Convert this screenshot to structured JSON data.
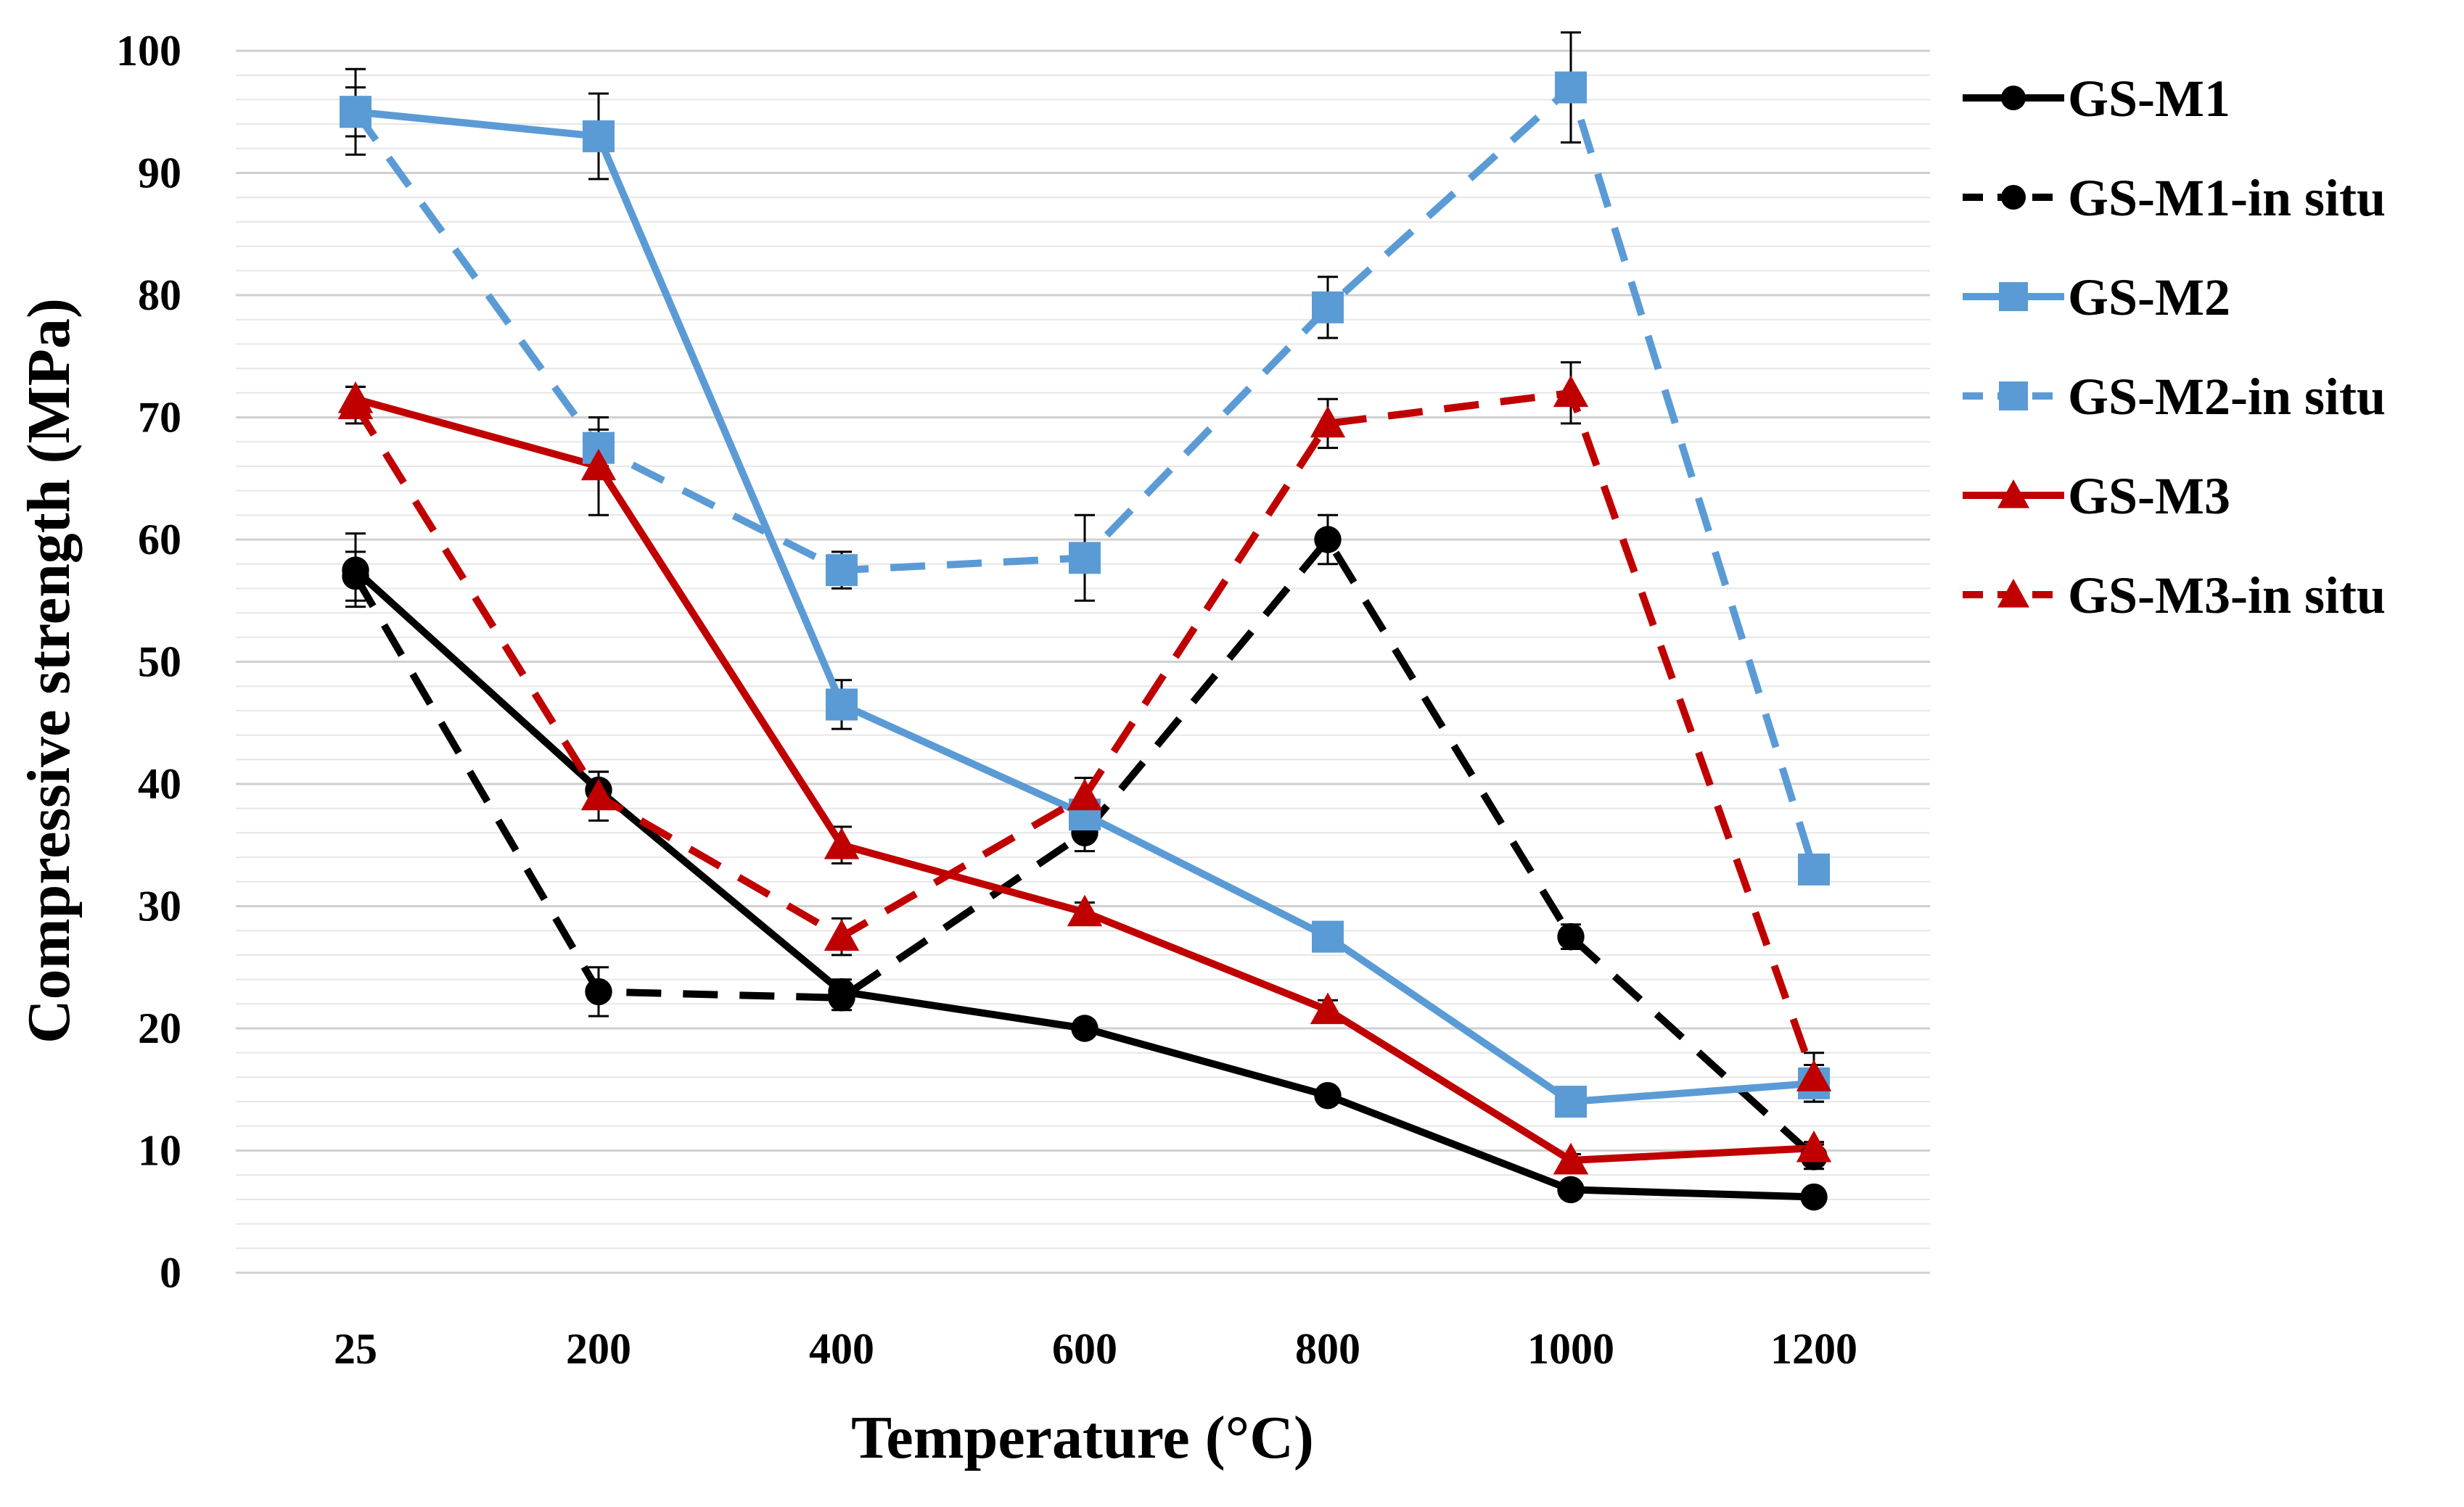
{
  "chart_data": {
    "type": "line",
    "title": "",
    "xlabel": "Temperature (°C)",
    "ylabel": "Compressive strength (MPa)",
    "categories": [
      "25",
      "200",
      "400",
      "600",
      "800",
      "1000",
      "1200"
    ],
    "ylim": [
      0,
      100
    ],
    "yticks": [
      "0",
      "10",
      "20",
      "30",
      "40",
      "50",
      "60",
      "70",
      "80",
      "90",
      "100"
    ],
    "grid": true,
    "legend_position": "right",
    "series": [
      {
        "name": "GS-M1",
        "color": "#000000",
        "dashed": false,
        "marker": "circle",
        "values": [
          57.5,
          39.5,
          23.0,
          20.0,
          14.5,
          6.8,
          6.2
        ],
        "errors": [
          3.0,
          1.5,
          1.0,
          0.6,
          0.6,
          0.4,
          0.4
        ]
      },
      {
        "name": "GS-M1-in situ",
        "color": "#000000",
        "dashed": true,
        "marker": "circle",
        "values": [
          57.0,
          23.0,
          22.5,
          36.0,
          60.0,
          27.5,
          9.5
        ],
        "errors": [
          2.0,
          2.0,
          1.0,
          1.5,
          2.0,
          1.0,
          1.0
        ]
      },
      {
        "name": "GS-M2",
        "color": "#5b9bd5",
        "dashed": false,
        "marker": "square",
        "values": [
          95.0,
          93.0,
          46.5,
          37.5,
          27.5,
          14.0,
          15.5
        ],
        "errors": [
          3.5,
          3.5,
          2.0,
          1.0,
          1.0,
          1.0,
          1.5
        ]
      },
      {
        "name": "GS-M2-in situ",
        "color": "#5b9bd5",
        "dashed": true,
        "marker": "square",
        "values": [
          95.0,
          67.5,
          57.5,
          58.5,
          79.0,
          97.0,
          33.0
        ],
        "errors": [
          2.0,
          1.5,
          1.5,
          3.5,
          2.5,
          4.5,
          0.5
        ]
      },
      {
        "name": "GS-M3",
        "color": "#c00000",
        "dashed": false,
        "marker": "triangle",
        "values": [
          71.5,
          66.0,
          35.0,
          29.5,
          21.5,
          9.2,
          10.2
        ],
        "errors": [
          1.0,
          4.0,
          1.5,
          0.8,
          0.8,
          0.5,
          0.5
        ]
      },
      {
        "name": "GS-M3-in situ",
        "color": "#c00000",
        "dashed": true,
        "marker": "triangle",
        "values": [
          71.0,
          39.0,
          27.5,
          39.0,
          69.5,
          72.0,
          16.0
        ],
        "errors": [
          1.5,
          2.0,
          1.5,
          1.5,
          2.0,
          2.5,
          2.0
        ]
      }
    ]
  }
}
